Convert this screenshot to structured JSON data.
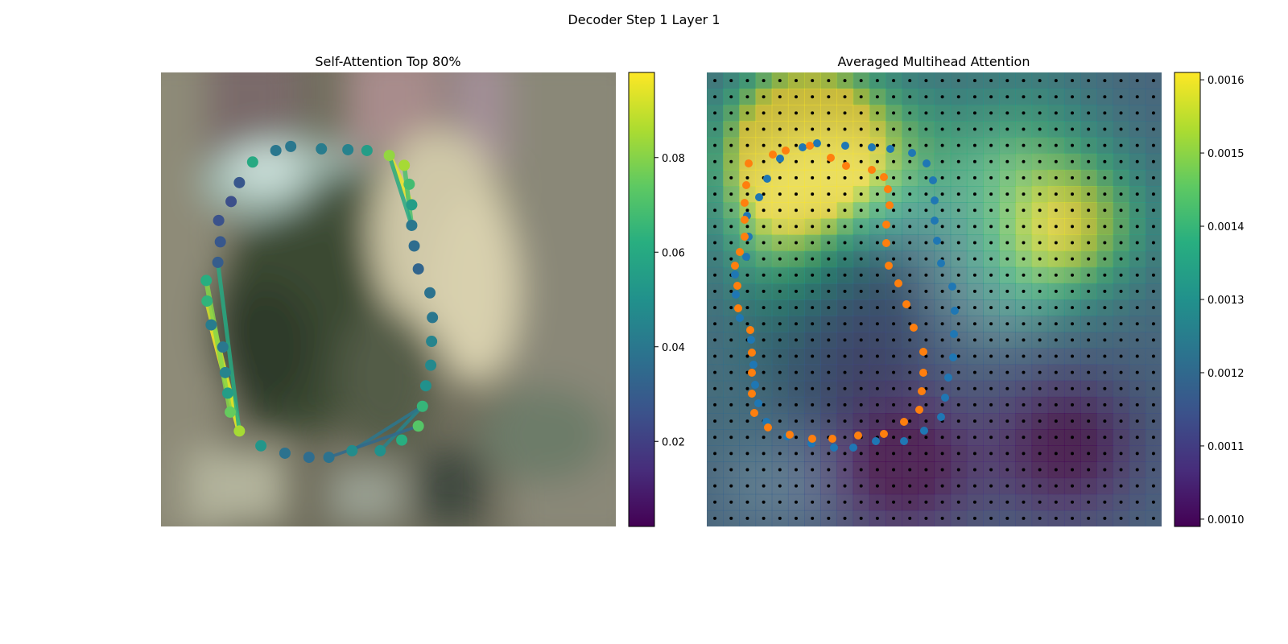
{
  "figure": {
    "title": "Decoder Step 1 Layer 1"
  },
  "chart_data": [
    {
      "type": "scatter",
      "title": "Self-Attention Top 80%",
      "description": "Contour polygon vertices over a blurred image, vertices colored by attention weight; lines connect attended vertex pairs (color = weight).",
      "colormap": "viridis",
      "colorbar": {
        "min": 0.002,
        "max": 0.098,
        "ticks": [
          0.02,
          0.04,
          0.06,
          0.08
        ],
        "tick_labels": [
          "0.02",
          "0.04",
          "0.06",
          "0.08"
        ]
      },
      "vertices_value": [
        [
          349,
          178,
          0.04
        ],
        [
          386,
          181,
          0.042
        ],
        [
          418,
          182,
          0.044
        ],
        [
          441,
          183,
          0.055
        ],
        [
          468,
          189,
          0.082
        ],
        [
          486,
          201,
          0.085
        ],
        [
          492,
          224,
          0.068
        ],
        [
          495,
          249,
          0.055
        ],
        [
          495,
          274,
          0.04
        ],
        [
          498,
          299,
          0.036
        ],
        [
          503,
          327,
          0.033
        ],
        [
          517,
          356,
          0.038
        ],
        [
          520,
          386,
          0.04
        ],
        [
          519,
          415,
          0.045
        ],
        [
          518,
          444,
          0.047
        ],
        [
          512,
          469,
          0.05
        ],
        [
          508,
          494,
          0.065
        ],
        [
          503,
          518,
          0.072
        ],
        [
          483,
          535,
          0.062
        ],
        [
          457,
          548,
          0.05
        ],
        [
          423,
          548,
          0.048
        ],
        [
          395,
          556,
          0.038
        ],
        [
          371,
          556,
          0.036
        ],
        [
          342,
          551,
          0.038
        ],
        [
          313,
          542,
          0.052
        ],
        [
          287,
          524,
          0.085
        ],
        [
          276,
          501,
          0.075
        ],
        [
          273,
          478,
          0.055
        ],
        [
          270,
          453,
          0.045
        ],
        [
          267,
          422,
          0.04
        ],
        [
          253,
          395,
          0.042
        ],
        [
          248,
          366,
          0.064
        ],
        [
          247,
          341,
          0.062
        ],
        [
          261,
          319,
          0.03
        ],
        [
          264,
          294,
          0.028
        ],
        [
          262,
          268,
          0.026
        ],
        [
          277,
          245,
          0.025
        ],
        [
          287,
          222,
          0.028
        ],
        [
          303,
          197,
          0.06
        ],
        [
          331,
          183,
          0.04
        ]
      ],
      "links": [
        [
          30,
          25,
          0.098
        ],
        [
          31,
          25,
          0.092
        ],
        [
          32,
          26,
          0.08
        ],
        [
          33,
          25,
          0.06
        ],
        [
          4,
          7,
          0.095
        ],
        [
          5,
          8,
          0.07
        ],
        [
          4,
          8,
          0.06
        ],
        [
          19,
          16,
          0.045
        ],
        [
          20,
          16,
          0.04
        ],
        [
          21,
          17,
          0.035
        ]
      ]
    },
    {
      "type": "heatmap",
      "title": "Averaged Multihead Attention",
      "description": "28x28 grid of averaged attention over a blurred image with grid points (black), predicted contour (blue) and ground-truth contour (orange).",
      "grid_size": 28,
      "colormap": "viridis",
      "colorbar": {
        "min": 0.00099,
        "max": 0.00161,
        "ticks": [
          0.001,
          0.0011,
          0.0012,
          0.0013,
          0.0014,
          0.0015,
          0.0016
        ],
        "tick_labels": [
          "0.0010",
          "0.0011",
          "0.0012",
          "0.0013",
          "0.0014",
          "0.0015",
          "0.0016"
        ]
      },
      "blob_field": [
        [
          3.3,
          6.1,
          20,
          12,
          0.00036
        ],
        [
          3.7,
          5.3,
          20,
          8,
          0.0003
        ],
        [
          6.6,
          4.3,
          20,
          8,
          0.00025
        ],
        [
          11.7,
          4.4,
          20,
          8,
          0.00014
        ],
        [
          8.6,
          22.5,
          20,
          8,
          0.0003
        ],
        [
          4.6,
          12.5,
          20,
          12,
          0.00016
        ],
        [
          10.4,
          19.5,
          20,
          8,
          0.00016
        ],
        [
          3.1,
          19.1,
          20,
          4,
          0.00014
        ],
        [
          23.6,
          11.6,
          -20,
          8,
          -0.00022
        ],
        [
          22.6,
          21.6,
          -20,
          12,
          -0.0002
        ],
        [
          15.2,
          7.9,
          -20,
          12,
          -7e-05
        ],
        [
          18.7,
          1.4,
          20,
          8,
          3e-05
        ]
      ],
      "base": 0.00118,
      "predicted_contour": [
        [
          1013,
          178
        ],
        [
          1048,
          181
        ],
        [
          1081,
          183
        ],
        [
          1104,
          185
        ],
        [
          1131,
          190
        ],
        [
          1149,
          203
        ],
        [
          1157,
          224
        ],
        [
          1159,
          249
        ],
        [
          1159,
          274
        ],
        [
          1162,
          299
        ],
        [
          1167,
          327
        ],
        [
          1181,
          356
        ],
        [
          1184,
          386
        ],
        [
          1183,
          415
        ],
        [
          1182,
          444
        ],
        [
          1176,
          469
        ],
        [
          1172,
          494
        ],
        [
          1167,
          518
        ],
        [
          1146,
          535
        ],
        [
          1121,
          548
        ],
        [
          1086,
          548
        ],
        [
          1058,
          556
        ],
        [
          1034,
          556
        ],
        [
          1006,
          551
        ],
        [
          976,
          542
        ],
        [
          950,
          524
        ],
        [
          940,
          501
        ],
        [
          936,
          478
        ],
        [
          934,
          453
        ],
        [
          931,
          422
        ],
        [
          917,
          395
        ],
        [
          912,
          366
        ],
        [
          911,
          341
        ],
        [
          925,
          319
        ],
        [
          928,
          294
        ],
        [
          926,
          268
        ],
        [
          941,
          245
        ],
        [
          951,
          222
        ],
        [
          967,
          197
        ],
        [
          995,
          183
        ]
      ],
      "ground_truth_contour": [
        [
          974,
          187
        ],
        [
          1004,
          181
        ],
        [
          1030,
          196
        ],
        [
          1049,
          206
        ],
        [
          1081,
          211
        ],
        [
          1096,
          220
        ],
        [
          1101,
          235
        ],
        [
          1103,
          255
        ],
        [
          1099,
          279
        ],
        [
          1099,
          302
        ],
        [
          1102,
          330
        ],
        [
          1114,
          352
        ],
        [
          1124,
          378
        ],
        [
          1133,
          407
        ],
        [
          1145,
          437
        ],
        [
          1145,
          463
        ],
        [
          1143,
          486
        ],
        [
          1140,
          509
        ],
        [
          1121,
          524
        ],
        [
          1096,
          539
        ],
        [
          1064,
          541
        ],
        [
          1032,
          545
        ],
        [
          1007,
          545
        ],
        [
          979,
          540
        ],
        [
          952,
          531
        ],
        [
          935,
          513
        ],
        [
          932,
          489
        ],
        [
          932,
          463
        ],
        [
          932,
          438
        ],
        [
          930,
          410
        ],
        [
          915,
          383
        ],
        [
          914,
          355
        ],
        [
          911,
          330
        ],
        [
          917,
          313
        ],
        [
          923,
          294
        ],
        [
          923,
          273
        ],
        [
          923,
          252
        ],
        [
          925,
          230
        ],
        [
          928,
          203
        ],
        [
          958,
          192
        ]
      ]
    }
  ]
}
